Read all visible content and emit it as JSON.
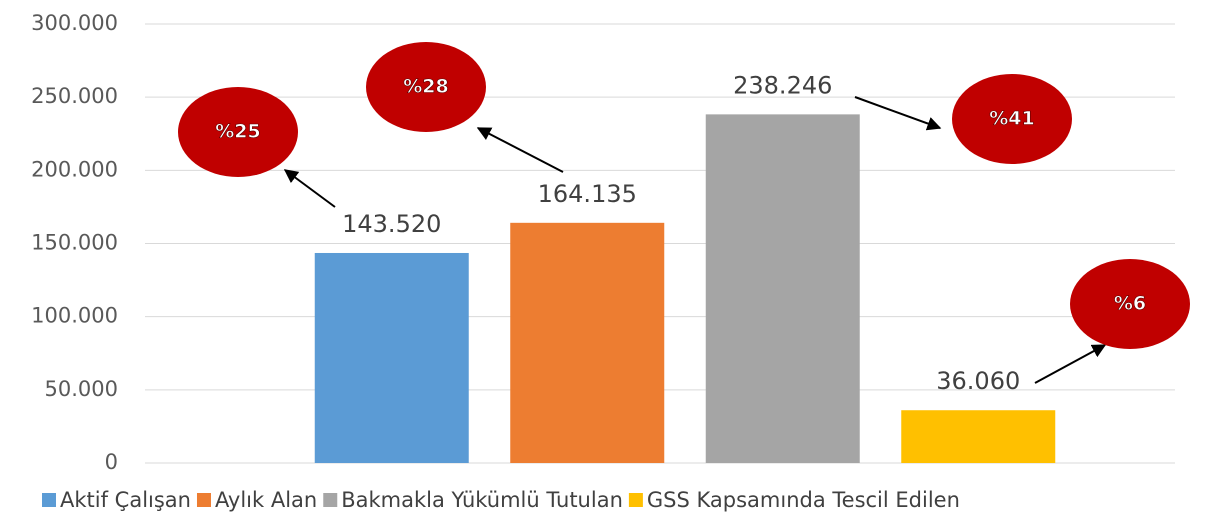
{
  "chart_data": {
    "type": "bar",
    "categories": [
      null
    ],
    "series": [
      {
        "name": "Aktif Çalışan",
        "color": "#5b9bd5",
        "values": [
          143520
        ],
        "value_labels": [
          "143.520"
        ]
      },
      {
        "name": "Aylık Alan",
        "color": "#ed7d31",
        "values": [
          164135
        ],
        "value_labels": [
          "164.135"
        ]
      },
      {
        "name": "Bakmakla Yükümlü Tutulan",
        "color": "#a5a5a5",
        "values": [
          238246
        ],
        "value_labels": [
          "238.246"
        ]
      },
      {
        "name": "GSS Kapsamında Tescil Edilen",
        "color": "#ffc000",
        "values": [
          36060
        ],
        "value_labels": [
          "36.060"
        ]
      }
    ],
    "annotations": [
      "%25",
      "%28",
      "%41",
      "%6"
    ],
    "annotation_color": "#c00000",
    "ylim": [
      0,
      300000
    ],
    "yticks": [
      0,
      {
        "value": 50000,
        "label": "50.000"
      },
      {
        "value": 100000,
        "label": "100.000"
      },
      {
        "value": 150000,
        "label": "150.000"
      },
      {
        "value": 200000,
        "label": "200.000"
      },
      {
        "value": 250000,
        "label": "250.000"
      },
      {
        "value": 300000,
        "label": "300.000"
      }
    ],
    "grid": true,
    "legend": "bottom"
  }
}
